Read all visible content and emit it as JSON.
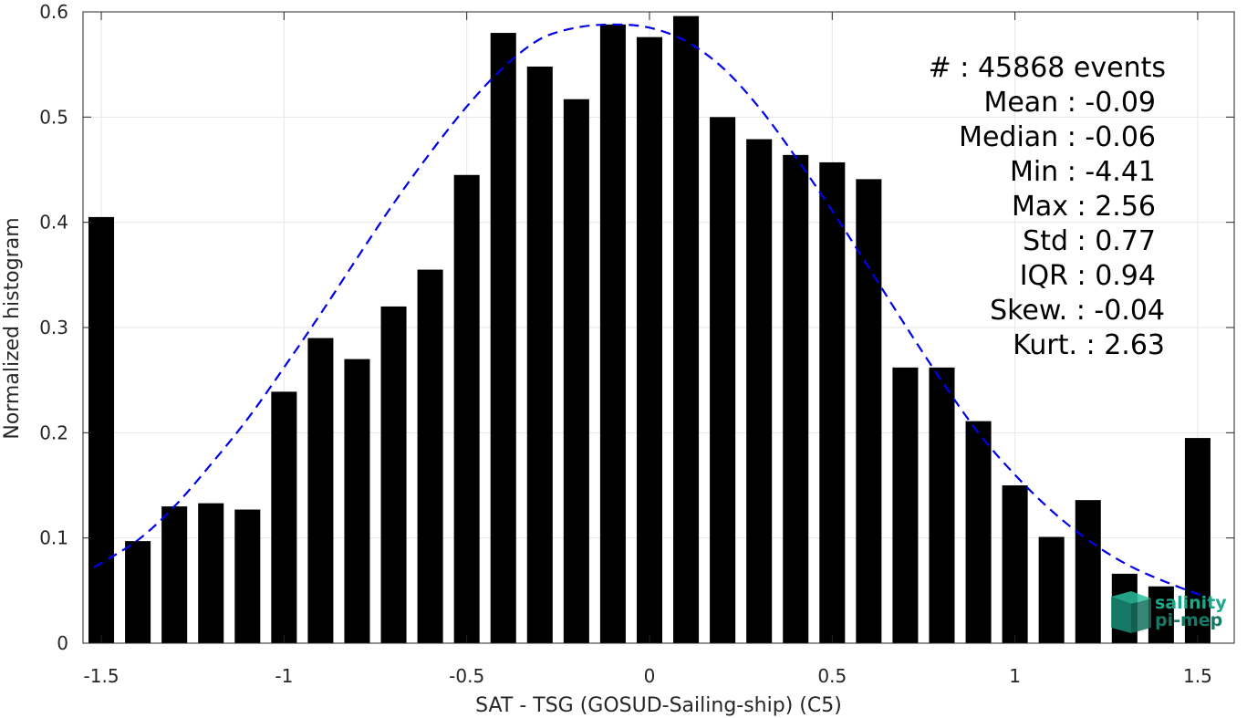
{
  "chart_data": {
    "type": "bar",
    "title": "",
    "xlabel": "SAT - TSG (GOSUD-Sailing-ship) (C5)",
    "ylabel": "Normalized histogram",
    "xlim": [
      -1.55,
      1.6
    ],
    "ylim": [
      0,
      0.6
    ],
    "grid": true,
    "xticks": [
      -1.5,
      -1,
      -0.5,
      0,
      0.5,
      1,
      1.5
    ],
    "xtick_labels": [
      "-1.5",
      "-1",
      "-0.5",
      "0",
      "0.5",
      "1",
      "1.5"
    ],
    "yticks": [
      0,
      0.1,
      0.2,
      0.3,
      0.4,
      0.5,
      0.6
    ],
    "ytick_labels": [
      "0",
      "0.1",
      "0.2",
      "0.3",
      "0.4",
      "0.5",
      "0.6"
    ],
    "bar_width": 0.07,
    "bars": {
      "x": [
        -1.5,
        -1.4,
        -1.3,
        -1.2,
        -1.1,
        -1.0,
        -0.9,
        -0.8,
        -0.7,
        -0.6,
        -0.5,
        -0.4,
        -0.3,
        -0.2,
        -0.1,
        0.0,
        0.1,
        0.2,
        0.3,
        0.4,
        0.5,
        0.6,
        0.7,
        0.8,
        0.9,
        1.0,
        1.1,
        1.2,
        1.3,
        1.4,
        1.5
      ],
      "values": [
        0.405,
        0.097,
        0.13,
        0.133,
        0.127,
        0.239,
        0.29,
        0.27,
        0.32,
        0.355,
        0.445,
        0.58,
        0.548,
        0.517,
        0.588,
        0.576,
        0.596,
        0.5,
        0.479,
        0.464,
        0.457,
        0.441,
        0.262,
        0.262,
        0.211,
        0.15,
        0.101,
        0.136,
        0.066,
        0.054,
        0.195
      ],
      "color": "#000000"
    },
    "fit_curve": {
      "style": "dashed",
      "color": "#0000ee",
      "x": [
        -1.52,
        -1.4,
        -1.3,
        -1.2,
        -1.1,
        -1.0,
        -0.9,
        -0.8,
        -0.7,
        -0.6,
        -0.5,
        -0.4,
        -0.3,
        -0.2,
        -0.1,
        0.0,
        0.1,
        0.2,
        0.3,
        0.4,
        0.5,
        0.6,
        0.7,
        0.8,
        0.9,
        1.0,
        1.1,
        1.2,
        1.3,
        1.4,
        1.52
      ],
      "y": [
        0.072,
        0.098,
        0.13,
        0.17,
        0.213,
        0.262,
        0.313,
        0.366,
        0.418,
        0.466,
        0.51,
        0.547,
        0.574,
        0.585,
        0.588,
        0.585,
        0.572,
        0.547,
        0.509,
        0.462,
        0.411,
        0.357,
        0.302,
        0.249,
        0.2,
        0.16,
        0.126,
        0.098,
        0.076,
        0.06,
        0.044
      ]
    },
    "stats": [
      {
        "label": "#  : 45868 events"
      },
      {
        "label": "Mean : -0.09"
      },
      {
        "label": "Median : -0.06"
      },
      {
        "label": "Min : -4.41"
      },
      {
        "label": "Max : 2.56"
      },
      {
        "label": "Std : 0.77"
      },
      {
        "label": "IQR : 0.94"
      },
      {
        "label": "Skew. : -0.04"
      },
      {
        "label": "Kurt. : 2.63"
      }
    ]
  },
  "logo": {
    "line1": "salinity",
    "line2": "pi-mep",
    "color": "#1aa88a"
  }
}
